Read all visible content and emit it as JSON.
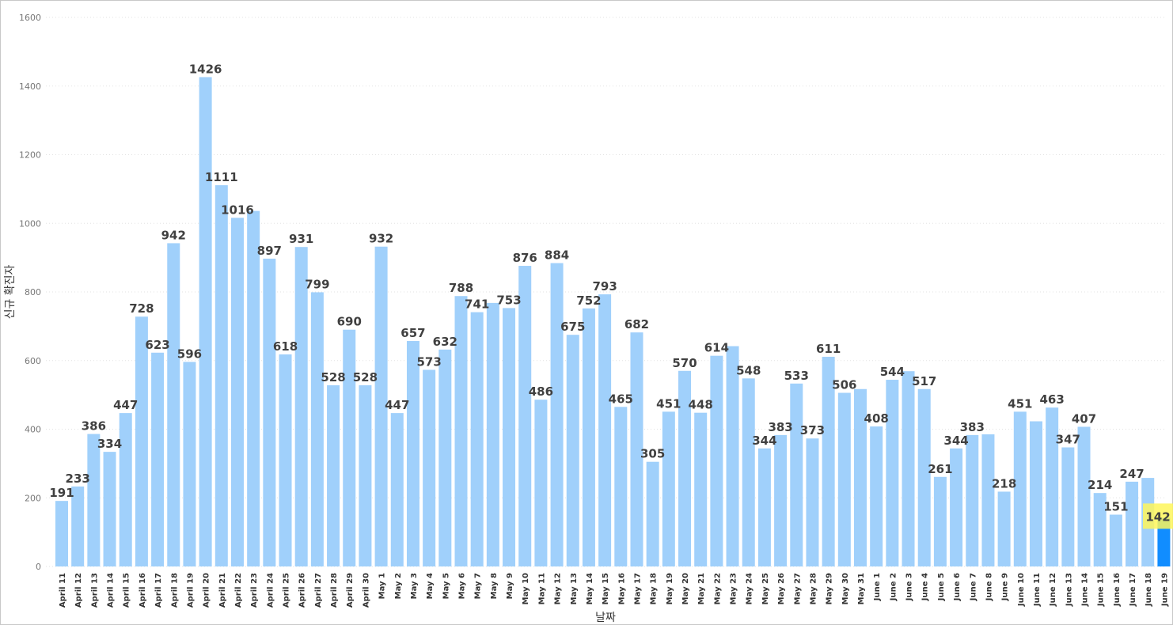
{
  "chart_data": {
    "type": "bar",
    "xlabel": "날짜",
    "ylabel": "신규 확진자",
    "ylim": [
      0,
      1600
    ],
    "yticks": [
      0,
      200,
      400,
      600,
      800,
      1000,
      1200,
      1400,
      1600
    ],
    "grid": true,
    "bar_color": "#a0d0fb",
    "highlight_color": "#118dff",
    "highlight_label_bg": "#fef65b",
    "label_color": "#404040",
    "categories": [
      "April 11",
      "April 12",
      "April 13",
      "April 14",
      "April 15",
      "April 16",
      "April 17",
      "April 18",
      "April 19",
      "April 20",
      "April 21",
      "April 22",
      "April 23",
      "April 24",
      "April 25",
      "April 26",
      "April 27",
      "April 28",
      "April 29",
      "April 30",
      "May 1",
      "May 2",
      "May 3",
      "May 4",
      "May 5",
      "May 6",
      "May 7",
      "May 8",
      "May 9",
      "May 10",
      "May 11",
      "May 12",
      "May 13",
      "May 14",
      "May 15",
      "May 16",
      "May 17",
      "May 18",
      "May 19",
      "May 20",
      "May 21",
      "May 22",
      "May 23",
      "May 24",
      "May 25",
      "May 26",
      "May 27",
      "May 28",
      "May 29",
      "May 30",
      "May 31",
      "June 1",
      "June 2",
      "June 3",
      "June 4",
      "June 5",
      "June 6",
      "June 7",
      "June 8",
      "June 9",
      "June 10",
      "June 11",
      "June 12",
      "June 13",
      "June 14",
      "June 15",
      "June 16",
      "June 17",
      "June 18",
      "June 19"
    ],
    "values": [
      191,
      233,
      386,
      334,
      447,
      728,
      623,
      942,
      596,
      1426,
      1111,
      1016,
      1036,
      897,
      618,
      931,
      799,
      528,
      690,
      528,
      932,
      447,
      657,
      573,
      632,
      788,
      741,
      768,
      753,
      876,
      486,
      884,
      675,
      752,
      793,
      465,
      682,
      305,
      451,
      570,
      448,
      614,
      642,
      548,
      344,
      383,
      533,
      373,
      611,
      506,
      517,
      408,
      544,
      569,
      517,
      261,
      344,
      383,
      385,
      218,
      451,
      423,
      463,
      347,
      407,
      214,
      151,
      247,
      258,
      142
    ],
    "labels": [
      "191",
      "233",
      "386",
      "334",
      "447",
      "728",
      "623",
      "942",
      "596",
      "1426",
      "1111",
      "1016",
      "",
      "897",
      "618",
      "931",
      "799",
      "528",
      "690",
      "528",
      "932",
      "447",
      "657",
      "573",
      "632",
      "788",
      "741",
      "",
      "753",
      "876",
      "486",
      "884",
      "675",
      "752",
      "793",
      "465",
      "682",
      "305",
      "451",
      "570",
      "448",
      "614",
      "",
      "548",
      "344",
      "383",
      "533",
      "373",
      "611",
      "506",
      "",
      "408",
      "544",
      "",
      "517",
      "261",
      "344",
      "383",
      "",
      "218",
      "451",
      "",
      "463",
      "347",
      "407",
      "214",
      "151",
      "247",
      "",
      "142"
    ],
    "highlight_index": 69
  }
}
